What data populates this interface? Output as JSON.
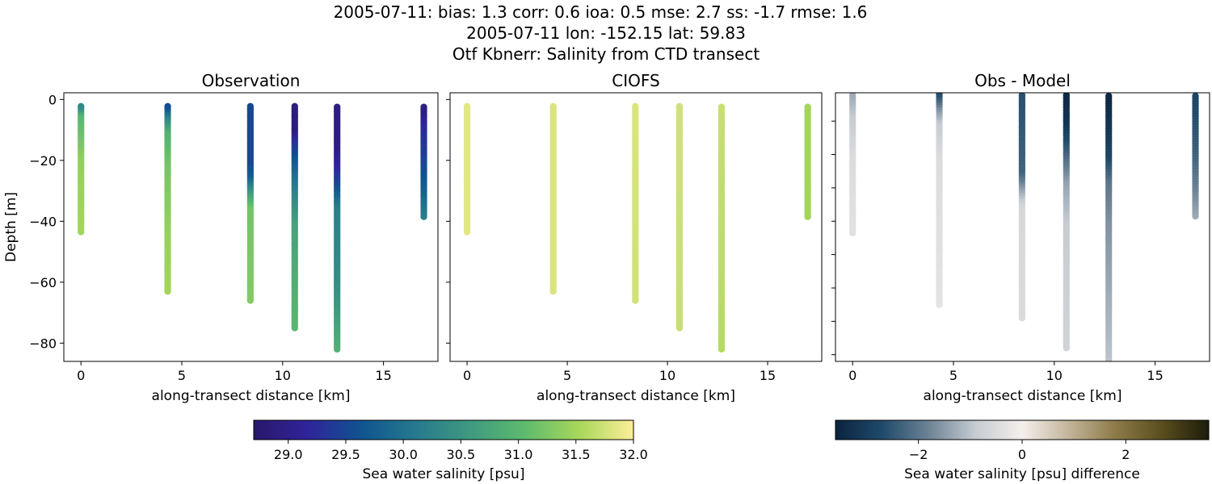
{
  "title": {
    "line1": "2005-07-11: bias: 1.3  corr: 0.6  ioa: 0.5  mse: 2.7  ss: -1.7  rmse: 1.6",
    "line2": "2005-07-11 lon: -152.15 lat: 59.83",
    "line3": "Otf Kbnerr: Salinity from CTD transect"
  },
  "chart_data": [
    {
      "type": "scatter",
      "title": "Observation",
      "xlabel": "along-transect distance [km]",
      "ylabel": "Depth [m]",
      "xlim": [
        -0.85,
        17.7
      ],
      "ylim": [
        -86,
        2.2
      ],
      "xticks": [
        "0",
        "5",
        "10",
        "15"
      ],
      "yticks": [
        "0",
        "−20",
        "−40",
        "−60",
        "−80"
      ],
      "colorbar": "salinity",
      "profiles": [
        {
          "x": 0.0,
          "points": [
            [
              -2,
              30.3
            ],
            [
              -5,
              31.0
            ],
            [
              -20,
              31.4
            ],
            [
              -43.5,
              31.5
            ]
          ]
        },
        {
          "x": 4.3,
          "points": [
            [
              -2,
              29.5
            ],
            [
              -5,
              30.2
            ],
            [
              -10,
              30.9
            ],
            [
              -20,
              31.2
            ],
            [
              -40,
              31.4
            ],
            [
              -63,
              31.5
            ]
          ]
        },
        {
          "x": 8.4,
          "points": [
            [
              -2,
              29.5
            ],
            [
              -20,
              29.5
            ],
            [
              -25,
              29.8
            ],
            [
              -30,
              30.6
            ],
            [
              -35,
              31.2
            ],
            [
              -66,
              31.3
            ]
          ]
        },
        {
          "x": 10.6,
          "points": [
            [
              -2,
              28.9
            ],
            [
              -10,
              28.9
            ],
            [
              -12,
              29.2
            ],
            [
              -18,
              29.6
            ],
            [
              -25,
              30.0
            ],
            [
              -40,
              30.7
            ],
            [
              -75,
              31.0
            ]
          ]
        },
        {
          "x": 12.7,
          "points": [
            [
              -2,
              28.9
            ],
            [
              -15,
              28.9
            ],
            [
              -22,
              29.2
            ],
            [
              -28,
              29.6
            ],
            [
              -35,
              30.2
            ],
            [
              -60,
              30.4
            ],
            [
              -82,
              30.9
            ]
          ]
        },
        {
          "x": 17.0,
          "points": [
            [
              -2,
              28.9
            ],
            [
              -8,
              29.2
            ],
            [
              -20,
              29.5
            ],
            [
              -30,
              29.8
            ],
            [
              -38.5,
              30.2
            ]
          ]
        }
      ]
    },
    {
      "type": "scatter",
      "title": "CIOFS",
      "xlabel": "along-transect distance [km]",
      "xlim": [
        -0.85,
        17.7
      ],
      "ylim": [
        -86,
        2.2
      ],
      "xticks": [
        "0",
        "5",
        "10",
        "15"
      ],
      "colorbar": "salinity",
      "profiles": [
        {
          "x": 0.0,
          "points": [
            [
              -2,
              31.85
            ],
            [
              -43.5,
              31.85
            ]
          ]
        },
        {
          "x": 4.3,
          "points": [
            [
              -2,
              31.8
            ],
            [
              -63,
              31.8
            ]
          ]
        },
        {
          "x": 8.4,
          "points": [
            [
              -2,
              31.8
            ],
            [
              -66,
              31.75
            ]
          ]
        },
        {
          "x": 10.6,
          "points": [
            [
              -2,
              31.75
            ],
            [
              -75,
              31.7
            ]
          ]
        },
        {
          "x": 12.7,
          "points": [
            [
              -2,
              31.7
            ],
            [
              -82,
              31.6
            ]
          ]
        },
        {
          "x": 17.0,
          "points": [
            [
              -2,
              31.5
            ],
            [
              -38.5,
              31.5
            ]
          ]
        }
      ]
    },
    {
      "type": "scatter",
      "title": "Obs - Model",
      "xlabel": "along-transect distance [km]",
      "xlim": [
        -0.85,
        17.7
      ],
      "ylim": [
        -82,
        -1.5
      ],
      "xticks": [
        "0",
        "5",
        "10",
        "15"
      ],
      "colorbar": "difference",
      "profiles": [
        {
          "x": 0.0,
          "points": [
            [
              -2,
              -1.3
            ],
            [
              -8,
              -0.9
            ],
            [
              -20,
              -0.5
            ],
            [
              -43.5,
              -0.35
            ]
          ]
        },
        {
          "x": 4.3,
          "points": [
            [
              -2,
              -2.6
            ],
            [
              -6,
              -1.6
            ],
            [
              -10,
              -0.9
            ],
            [
              -20,
              -0.5
            ],
            [
              -65,
              -0.3
            ]
          ]
        },
        {
          "x": 8.4,
          "points": [
            [
              -2,
              -2.6
            ],
            [
              -25,
              -2.3
            ],
            [
              -30,
              -1.4
            ],
            [
              -35,
              -0.6
            ],
            [
              -69,
              -0.5
            ]
          ]
        },
        {
          "x": 10.6,
          "points": [
            [
              -2,
              -3.5
            ],
            [
              -10,
              -3.2
            ],
            [
              -18,
              -2.4
            ],
            [
              -28,
              -1.4
            ],
            [
              -40,
              -0.9
            ],
            [
              -78,
              -0.7
            ]
          ]
        },
        {
          "x": 12.7,
          "points": [
            [
              -2,
              -3.5
            ],
            [
              -20,
              -2.8
            ],
            [
              -28,
              -2.0
            ],
            [
              -40,
              -1.6
            ],
            [
              -82,
              -1.0
            ]
          ]
        },
        {
          "x": 17.0,
          "points": [
            [
              -2,
              -2.8
            ],
            [
              -20,
              -2.3
            ],
            [
              -30,
              -1.8
            ],
            [
              -38.5,
              -1.3
            ]
          ]
        }
      ]
    }
  ],
  "colorbars": {
    "salinity": {
      "label": "Sea water salinity [psu]",
      "range": [
        28.7,
        32.0
      ],
      "ticks": [
        "29.0",
        "29.5",
        "30.0",
        "30.5",
        "31.0",
        "31.5",
        "32.0"
      ],
      "colors": [
        "#2a186c",
        "#2f249a",
        "#0f5590",
        "#277a8e",
        "#3f9a80",
        "#5dbb6e",
        "#a8d75a",
        "#fdee99"
      ]
    },
    "difference": {
      "label": "Sea water salinity [psu] difference",
      "range": [
        -3.6,
        3.6
      ],
      "ticks": [
        "−2",
        "0",
        "2"
      ],
      "colors": [
        "#0b2340",
        "#1f4a6a",
        "#6d8396",
        "#c6ccd2",
        "#f4efec",
        "#c3b59a",
        "#8d7a48",
        "#5a4e1e",
        "#1c1c0a"
      ]
    }
  }
}
